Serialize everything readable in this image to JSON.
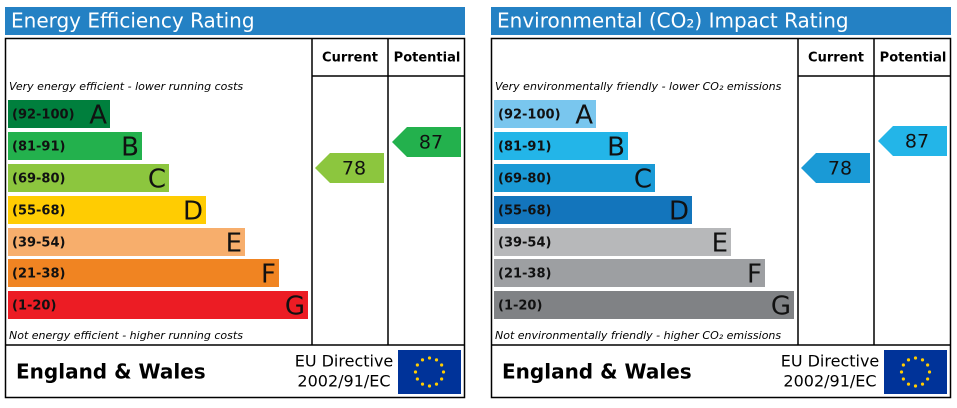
{
  "panels": [
    {
      "title": "Energy Efficiency Rating",
      "columns": [
        "Current",
        "Potential"
      ],
      "top_note": "Very energy efficient - lower running costs",
      "bands": [
        {
          "range": "(92-100)",
          "letter": "A"
        },
        {
          "range": "(81-91)",
          "letter": "B"
        },
        {
          "range": "(69-80)",
          "letter": "C"
        },
        {
          "range": "(55-68)",
          "letter": "D"
        },
        {
          "range": "(39-54)",
          "letter": "E"
        },
        {
          "range": "(21-38)",
          "letter": "F"
        },
        {
          "range": "(1-20)",
          "letter": "G"
        }
      ],
      "bottom_note": "Not energy efficient - higher running costs",
      "current": 78,
      "potential": 87,
      "footer": {
        "region": "England & Wales",
        "directive": "EU Directive",
        "directive_code": "2002/91/EC"
      }
    },
    {
      "title": "Environmental (CO₂) Impact Rating",
      "columns": [
        "Current",
        "Potential"
      ],
      "top_note": "Very environmentally friendly - lower CO₂ emissions",
      "bands": [
        {
          "range": "(92-100)",
          "letter": "A"
        },
        {
          "range": "(81-91)",
          "letter": "B"
        },
        {
          "range": "(69-80)",
          "letter": "C"
        },
        {
          "range": "(55-68)",
          "letter": "D"
        },
        {
          "range": "(39-54)",
          "letter": "E"
        },
        {
          "range": "(21-38)",
          "letter": "F"
        },
        {
          "range": "(1-20)",
          "letter": "G"
        }
      ],
      "bottom_note": "Not environmentally friendly - higher CO₂ emissions",
      "current": 78,
      "potential": 87,
      "footer": {
        "region": "England & Wales",
        "directive": "EU Directive",
        "directive_code": "2002/91/EC"
      }
    }
  ]
}
